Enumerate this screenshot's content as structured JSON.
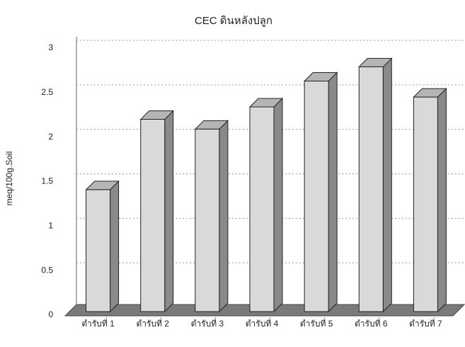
{
  "chart_data": {
    "type": "bar3d",
    "title": "CEC ดินหลังปลูก",
    "y_label": "meq/100g.Soil",
    "categories": [
      "ตำรับที่ 1",
      "ตำรับที่ 2",
      "ตำรับที่ 3",
      "ตำรับที่ 4",
      "ตำรับที่ 5",
      "ตำรับที่ 6",
      "ตำรับที่ 7"
    ],
    "values": [
      1.37,
      2.16,
      2.05,
      2.3,
      2.59,
      2.75,
      2.41
    ],
    "color": "#d9d9d9",
    "ylim": [
      0,
      3
    ],
    "yticks": [
      0,
      0.5,
      1,
      1.5,
      2,
      2.5,
      3
    ],
    "grid": true
  }
}
